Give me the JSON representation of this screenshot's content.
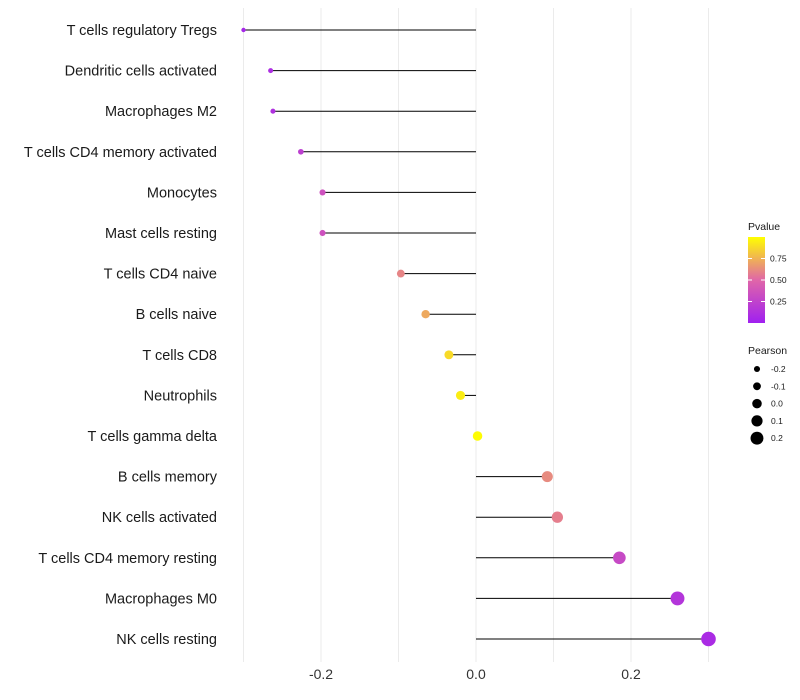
{
  "chart_data": {
    "type": "lollipop",
    "title": "",
    "xlabel": "",
    "ylabel": "",
    "xlim": [
      -0.3,
      0.3
    ],
    "x_ticks": [
      "-0.2",
      "0.0",
      "0.2"
    ],
    "categories": [
      "T cells regulatory  Tregs",
      "Dendritic cells activated",
      "Macrophages M2",
      "T cells CD4 memory activated",
      "Monocytes",
      "Mast cells resting",
      "T cells CD4 naive",
      "B cells naive",
      "T cells CD8",
      "Neutrophils",
      "T cells gamma delta",
      "B cells memory",
      "NK cells activated",
      "T cells CD4 memory resting",
      "Macrophages M0",
      "NK cells resting"
    ],
    "pearson": [
      -0.3,
      -0.265,
      -0.262,
      -0.226,
      -0.198,
      -0.198,
      -0.097,
      -0.065,
      -0.035,
      -0.02,
      0.002,
      0.092,
      0.105,
      0.185,
      0.26,
      0.3
    ],
    "pvalue": [
      0.05,
      0.1,
      0.12,
      0.22,
      0.35,
      0.35,
      0.6,
      0.72,
      0.88,
      0.94,
      0.99,
      0.62,
      0.58,
      0.3,
      0.15,
      0.08
    ],
    "legend_pvalue": {
      "title": "Pvalue",
      "ticks": [
        "0.25",
        "0.50",
        "0.75"
      ],
      "colors": {
        "low": "#a020f0",
        "mid": "#e066a8",
        "high": "#ffff00"
      }
    },
    "legend_pearson": {
      "title": "Pearson",
      "ticks": [
        "-0.2",
        "-0.1",
        "0.0",
        "0.1",
        "0.2"
      ]
    },
    "grid": "vertical"
  }
}
